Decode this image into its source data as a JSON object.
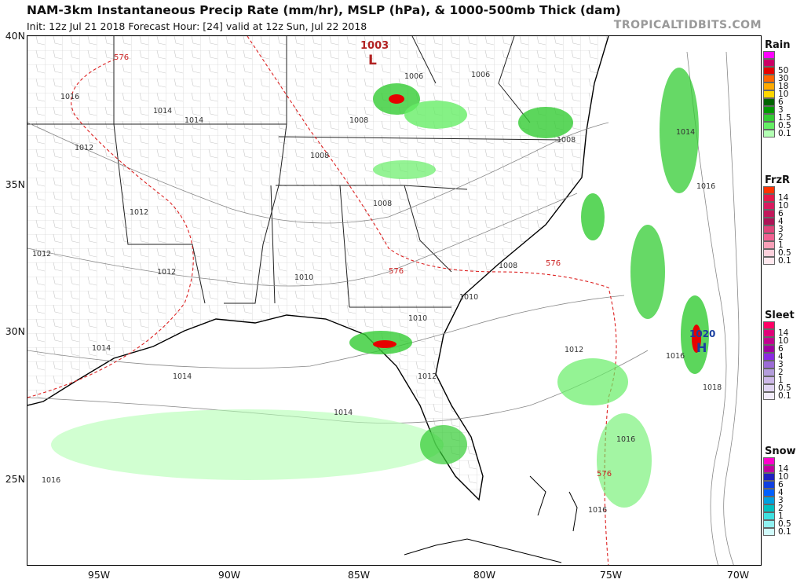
{
  "header": {
    "title": "NAM-3km Instantaneous Precip Rate (mm/hr), MSLP (hPa), & 1000-500mb Thick (dam)",
    "subtitle": "Init: 12z Jul 21 2018   Forecast Hour: [24]   valid at 12z Sun, Jul 22 2018",
    "brand": "TROPICALTIDBITS.COM"
  },
  "axes": {
    "lat_labels": [
      "40N",
      "35N",
      "30N",
      "25N"
    ],
    "lon_labels": [
      "95W",
      "90W",
      "85W",
      "80W",
      "75W",
      "70W"
    ]
  },
  "pressure": {
    "low_value": "1003",
    "low_symbol": "L",
    "high_value": "1020",
    "high_symbol": "H",
    "isobar_labels": [
      "1016",
      "1014",
      "1012",
      "1014",
      "1012",
      "1010",
      "1012",
      "1012",
      "1014",
      "1014",
      "1014",
      "1012",
      "1010",
      "1010",
      "1008",
      "1008",
      "1008",
      "1008",
      "1006",
      "1006",
      "1008",
      "1012",
      "1016",
      "1016",
      "1016",
      "1018",
      "1014",
      "1016",
      "1016"
    ],
    "thickness_labels": [
      "576",
      "576",
      "576",
      "576"
    ]
  },
  "legend": {
    "rain": {
      "title": "Rain",
      "levels": [
        "50",
        "30",
        "18",
        "10",
        "6",
        "3",
        "1.5",
        "0.5",
        "0.1"
      ],
      "colors": [
        "#ff00ff",
        "#cc0066",
        "#e60000",
        "#ff6600",
        "#ffaa00",
        "#ffd700",
        "#006400",
        "#009900",
        "#33cc33",
        "#66ee66",
        "#b3ffb3"
      ]
    },
    "frzr": {
      "title": "FrzR",
      "levels": [
        "14",
        "10",
        "6",
        "4",
        "3",
        "2",
        "1",
        "0.5",
        "0.1"
      ],
      "colors": [
        "#ff3300",
        "#e6194b",
        "#d81b60",
        "#c2185b",
        "#ad1457",
        "#e0457b",
        "#f06292",
        "#f8a0b8",
        "#fcd0dc",
        "#ffe8ee"
      ]
    },
    "sleet": {
      "title": "Sleet",
      "levels": [
        "14",
        "10",
        "6",
        "4",
        "3",
        "2",
        "1",
        "0.5",
        "0.1"
      ],
      "colors": [
        "#ff0066",
        "#e0007a",
        "#c2008f",
        "#a000a0",
        "#8a2be2",
        "#9c6bd6",
        "#b39ddb",
        "#cdb8e8",
        "#e0d4f2",
        "#f2ecfa"
      ]
    },
    "snow": {
      "title": "Snow",
      "levels": [
        "14",
        "10",
        "6",
        "4",
        "3",
        "2",
        "1",
        "0.5",
        "0.1"
      ],
      "colors": [
        "#ff00cc",
        "#c000a0",
        "#2020c0",
        "#1040e0",
        "#0060ff",
        "#00a0e0",
        "#00c0c0",
        "#40e0e0",
        "#90f0f0",
        "#d0fafa"
      ]
    }
  }
}
